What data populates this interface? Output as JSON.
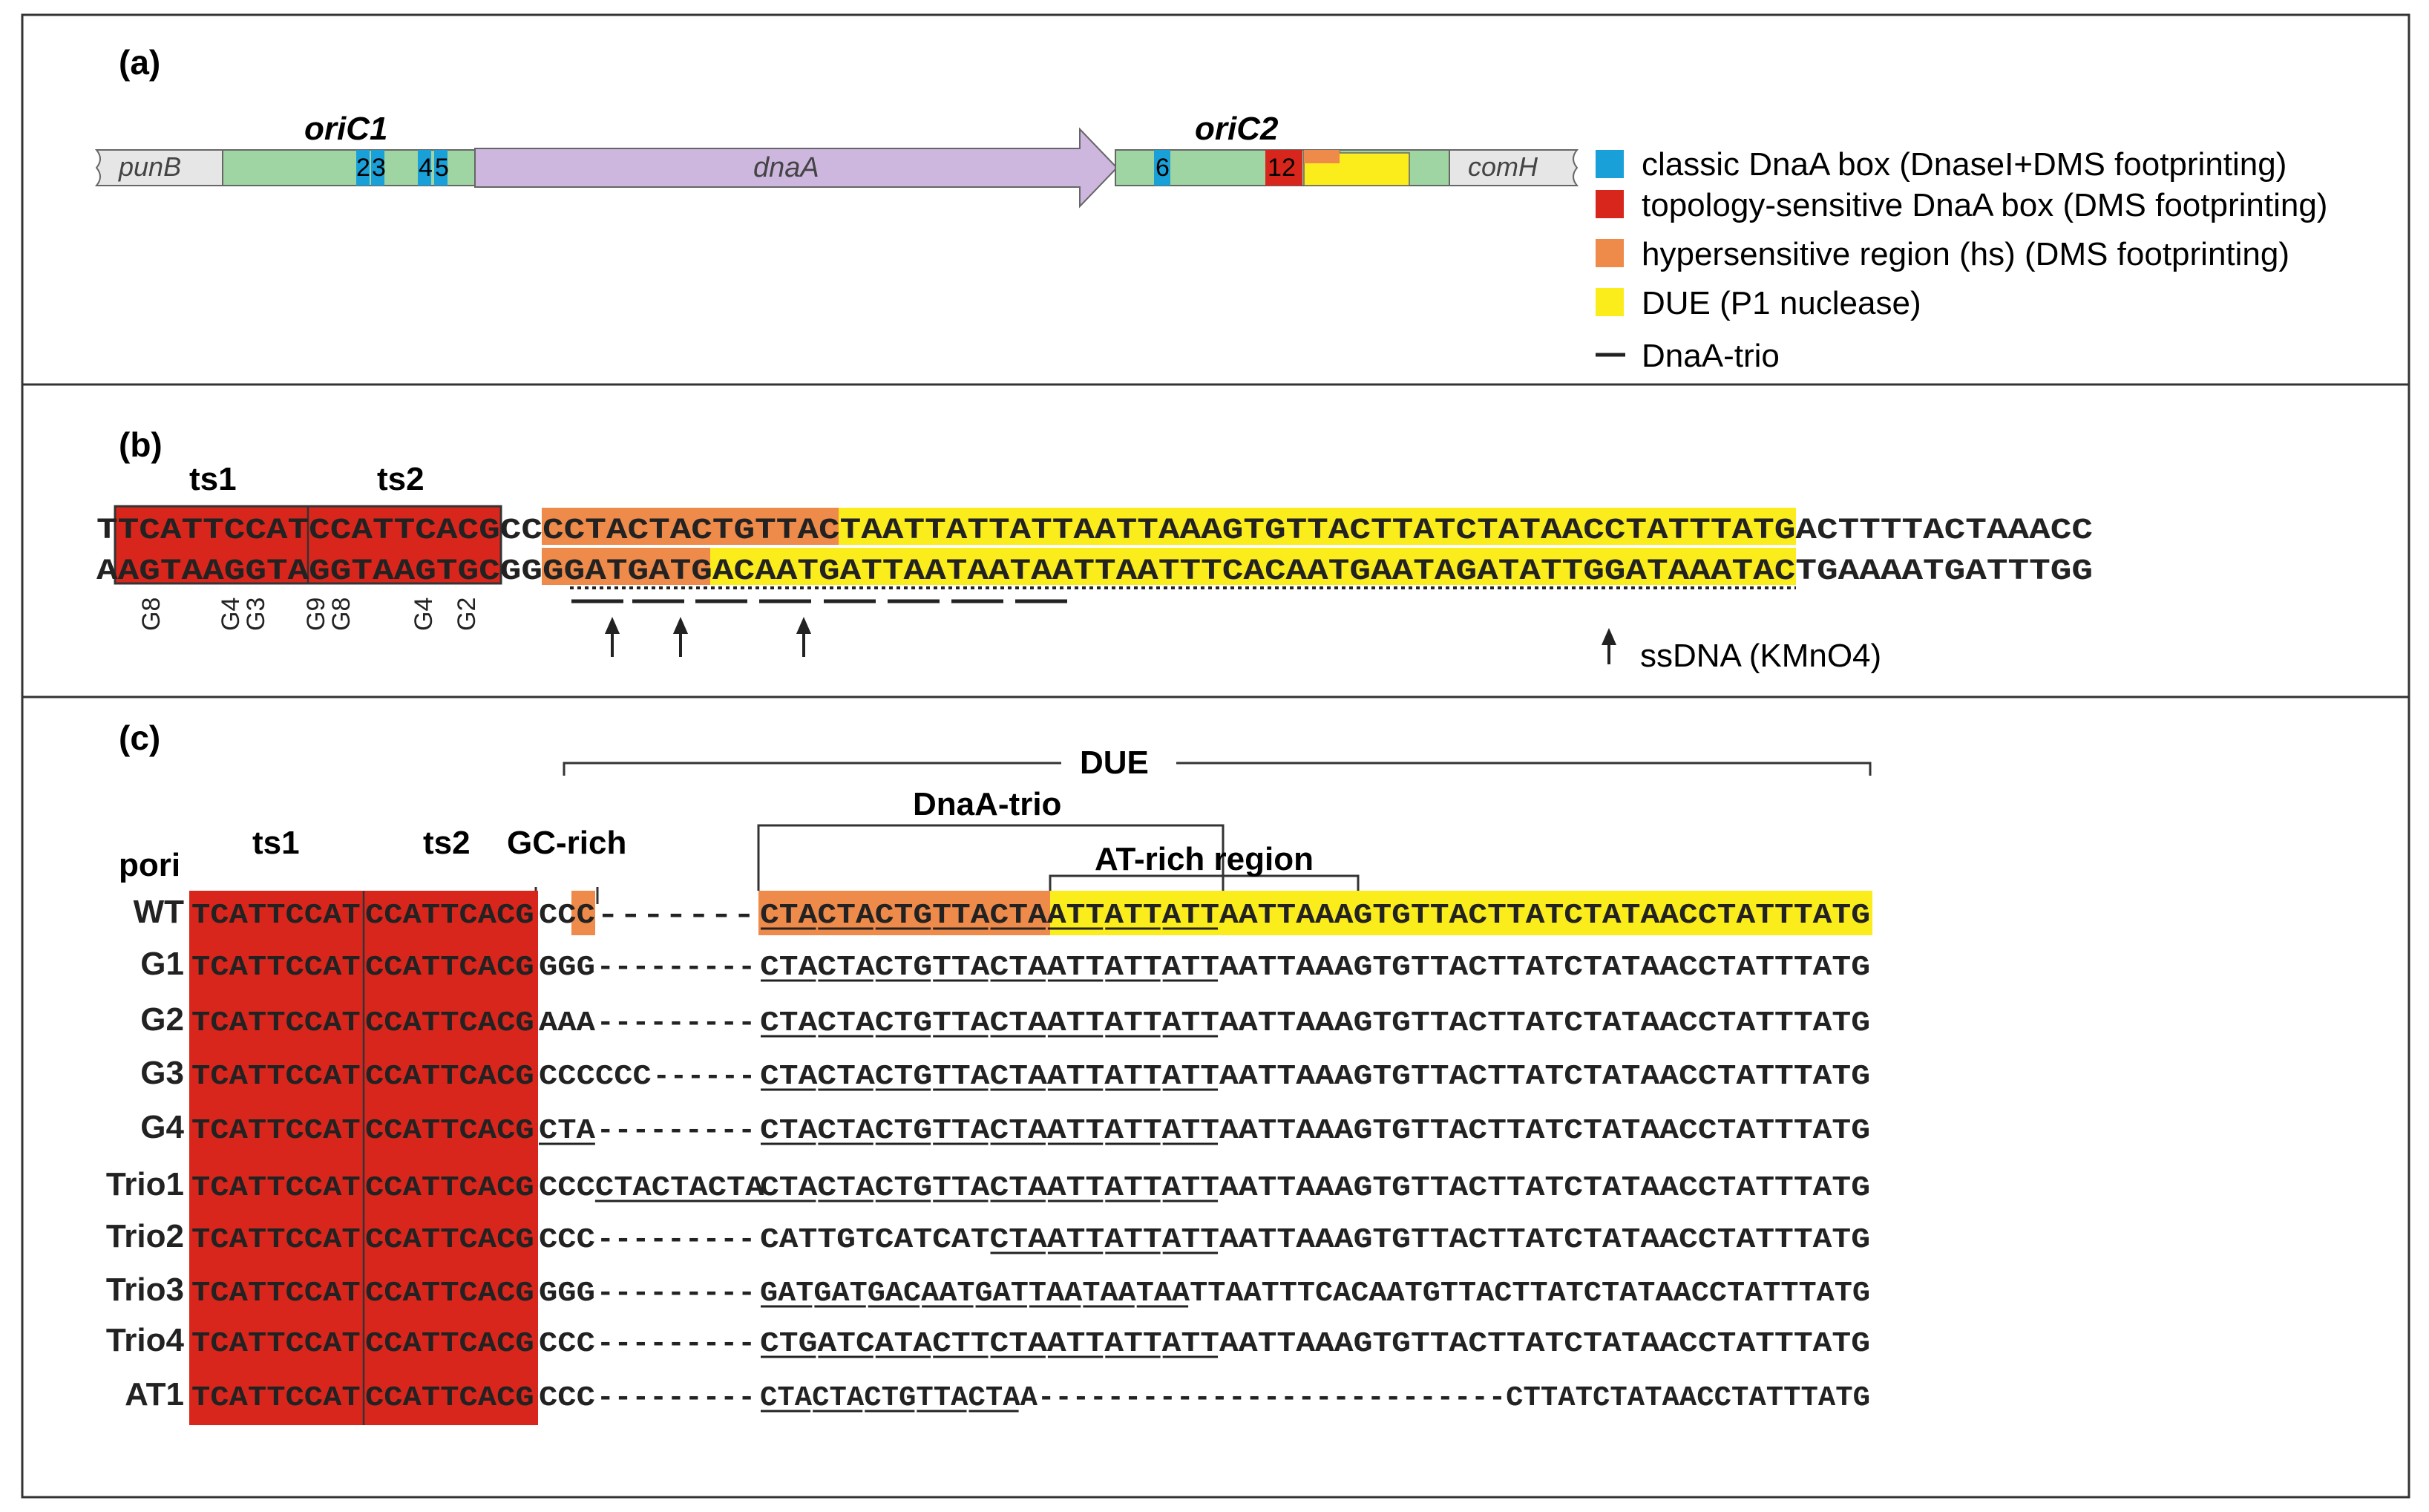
{
  "colors": {
    "blue": "#1aa0d8",
    "red": "#d9261c",
    "orange": "#ee8a4a",
    "yellow": "#fbec1c",
    "green": "#9fd4a3",
    "purple": "#cdb7df",
    "grey": "#e6e6e6"
  },
  "panel_a": {
    "label": "(a)",
    "oric1": "oriC1",
    "oric2": "oriC2",
    "genes": {
      "punB": "punB",
      "dnaA": "dnaA",
      "comH": "comH"
    },
    "boxes": {
      "b2": "2",
      "b3": "3",
      "b4": "4",
      "b5": "5",
      "b6": "6",
      "b1": "1",
      "b2b": "2"
    },
    "legend": [
      "classic DnaA box (DnaseI+DMS footprinting)",
      "topology-sensitive DnaA box (DMS footprinting)",
      "hypersensitive region (hs) (DMS footprinting)",
      "DUE (P1 nuclease)",
      "DnaA-trio"
    ]
  },
  "panel_b": {
    "label": "(b)",
    "ts1": "ts1",
    "ts2": "ts2",
    "top": {
      "s1": "T",
      "s2": "TCATTCCAT",
      "s3": "CCATTCACG",
      "s4": "CC",
      "s5": "CCTACTACTGTTAC",
      "s6": "TAATTATTATTAATTAAAGTGTTACTTATCTATAACCTATTTATG",
      "s7": "ACTTTTACTAAACC"
    },
    "bottom": {
      "s1": "A",
      "s2": "AGTAAGGTA",
      "s3": "GGTAAGTGC",
      "s4": "GG",
      "s5": "GGATGATG",
      "s6": "ACAATGATTAATAATAATTAATTTCACAATGAATAGATATTGGATAAATAC",
      "s7": "TGAAAATGATTTGG"
    },
    "gmarks": [
      "G8",
      "G4",
      "G3",
      "G9",
      "G8",
      "G4",
      "G2"
    ],
    "ssdna": "ssDNA (KMnO4)"
  },
  "panel_c": {
    "label": "(c)",
    "due": "DUE",
    "dnaa_trio": "DnaA-trio",
    "at_rich": "AT-rich region",
    "gc_rich": "GC-rich",
    "ts1": "ts1",
    "ts2": "ts2",
    "pori": "pori",
    "ts_seq1": "TCATTCCAT",
    "ts_seq2": "CCATTCACG",
    "rows": [
      {
        "name": "WT",
        "gc": "CC",
        "gc2": "C",
        "dash": "-------",
        "seq": "CTACTACTGTTACTAATTATTATTAATTAAAGTGTTACTTATCTATAACCTATTTATG"
      },
      {
        "name": "G1",
        "gc": "GGG",
        "dash": "---------",
        "seq": "CTACTACTGTTACTAATTATTATTAATTAAAGTGTTACTTATCTATAACCTATTTATG"
      },
      {
        "name": "G2",
        "gc": "AAA",
        "dash": "---------",
        "seq": "CTACTACTGTTACTAATTATTATTAATTAAAGTGTTACTTATCTATAACCTATTTATG"
      },
      {
        "name": "G3",
        "gc": "CCCCCC",
        "dash": "------",
        "seq": "CTACTACTGTTACTAATTATTATTAATTAAAGTGTTACTTATCTATAACCTATTTATG"
      },
      {
        "name": "G4",
        "gc": "CTA",
        "dash": "---------",
        "seq": "CTACTACTGTTACTAATTATTATTAATTAAAGTGTTACTTATCTATAACCTATTTATG"
      },
      {
        "name": "Trio1",
        "gc": "CCCCTACTACTA",
        "dash": "",
        "seq": "CTACTACTGTTACTAATTATTATTAATTAAAGTGTTACTTATCTATAACCTATTTATG"
      },
      {
        "name": "Trio2",
        "gc": "CCC",
        "dash": "---------",
        "seq": "CATTGTCATCATCTAATTATTATTAATTAAAGTGTTACTTATCTATAACCTATTTATG"
      },
      {
        "name": "Trio3",
        "gc": "GGG",
        "dash": "---------",
        "seq": "GATGATGACAATGATTAATAATAATTAATTTCACAATGTTACTTATCTATAACCTATTTATG"
      },
      {
        "name": "Trio4",
        "gc": "CCC",
        "dash": "---------",
        "seq": "CTGATCATACTTCTAATTATTATTAATTAAAGTGTTACTTATCTATAACCTATTTATG"
      },
      {
        "name": "AT1",
        "gc": "CCC",
        "dash": "---------",
        "seq": "CTACTACTGTTACTAA---------------------------CTTATCTATAACCTATTTATG"
      }
    ]
  }
}
